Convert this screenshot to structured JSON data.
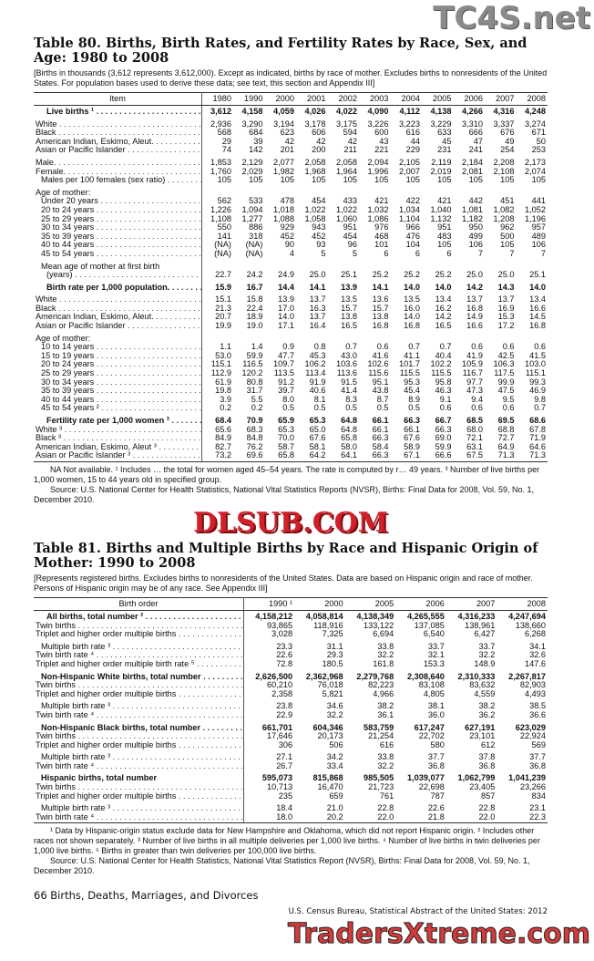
{
  "watermarks": {
    "top": "TC4S.net",
    "middle": "DLSUB.COM",
    "bottom": "TradersXtreme.com"
  },
  "table80": {
    "title": "Table 80. Births, Birth Rates, and Fertility Rates by Race, Sex, and Age: 1980 to 2008",
    "intro": "[Births in thousands (3,612 represents 3,612,000). Except as indicated, births by race of mother. Excludes births to nonresidents of the United States. For population bases used to derive these data; see text, this section and Appendix III]",
    "columns": [
      "Item",
      "1980",
      "1990",
      "2000",
      "2001",
      "2002",
      "2003",
      "2004",
      "2005",
      "2006",
      "2007",
      "2008"
    ],
    "rows": [
      {
        "label": "Live births ¹",
        "bold": true,
        "ind": 2,
        "values": [
          "3,612",
          "4,158",
          "4,059",
          "4,026",
          "4,022",
          "4,090",
          "4,112",
          "4,138",
          "4,266",
          "4,316",
          "4,248"
        ]
      },
      {
        "label": "White",
        "gap": true,
        "values": [
          "2,936",
          "3,290",
          "3,194",
          "3,178",
          "3,175",
          "3,226",
          "3,223",
          "3,229",
          "3,310",
          "3,337",
          "3,274"
        ]
      },
      {
        "label": "Black",
        "values": [
          "568",
          "684",
          "623",
          "606",
          "594",
          "600",
          "616",
          "633",
          "666",
          "676",
          "671"
        ]
      },
      {
        "label": "American Indian, Eskimo, Aleut.",
        "values": [
          "29",
          "39",
          "42",
          "42",
          "42",
          "43",
          "44",
          "45",
          "47",
          "49",
          "50"
        ]
      },
      {
        "label": "Asian or Pacific Islander",
        "values": [
          "74",
          "142",
          "201",
          "200",
          "211",
          "221",
          "229",
          "231",
          "241",
          "254",
          "253"
        ]
      },
      {
        "label": "Male.",
        "gap": true,
        "values": [
          "1,853",
          "2,129",
          "2,077",
          "2,058",
          "2,058",
          "2,094",
          "2,105",
          "2,119",
          "2,184",
          "2,208",
          "2,173"
        ]
      },
      {
        "label": "Female.",
        "values": [
          "1,760",
          "2,029",
          "1,982",
          "1,968",
          "1,964",
          "1,996",
          "2,007",
          "2,019",
          "2,081",
          "2,108",
          "2,074"
        ]
      },
      {
        "label": "Males per 100 females (sex ratio)",
        "ind": 1,
        "values": [
          "105",
          "105",
          "105",
          "105",
          "105",
          "105",
          "105",
          "105",
          "105",
          "105",
          "105"
        ]
      },
      {
        "label": "Age of mother:",
        "gap": true,
        "nodots": true,
        "values": []
      },
      {
        "label": "Under 20 years",
        "ind": 1,
        "values": [
          "562",
          "533",
          "478",
          "454",
          "433",
          "421",
          "422",
          "421",
          "442",
          "451",
          "441"
        ]
      },
      {
        "label": "20 to 24 years",
        "ind": 1,
        "values": [
          "1,226",
          "1,094",
          "1,018",
          "1,022",
          "1,022",
          "1,032",
          "1,034",
          "1,040",
          "1,081",
          "1,082",
          "1,052"
        ]
      },
      {
        "label": "25 to 29 years",
        "ind": 1,
        "values": [
          "1,108",
          "1,277",
          "1,088",
          "1,058",
          "1,060",
          "1,086",
          "1,104",
          "1,132",
          "1,182",
          "1,208",
          "1,196"
        ]
      },
      {
        "label": "30 to 34 years",
        "ind": 1,
        "values": [
          "550",
          "886",
          "929",
          "943",
          "951",
          "976",
          "966",
          "951",
          "950",
          "962",
          "957"
        ]
      },
      {
        "label": "35 to 39 years",
        "ind": 1,
        "values": [
          "141",
          "318",
          "452",
          "452",
          "454",
          "468",
          "476",
          "483",
          "499",
          "500",
          "489"
        ]
      },
      {
        "label": "40 to 44 years",
        "ind": 1,
        "values": [
          "(NA)",
          "(NA)",
          "90",
          "93",
          "96",
          "101",
          "104",
          "105",
          "106",
          "105",
          "106"
        ]
      },
      {
        "label": "45 to 54 years",
        "ind": 1,
        "values": [
          "(NA)",
          "(NA)",
          "4",
          "5",
          "5",
          "6",
          "6",
          "6",
          "7",
          "7",
          "7"
        ]
      },
      {
        "label": "Mean age of mother at first birth",
        "ind": 1,
        "gap": true,
        "nodots": true,
        "values": []
      },
      {
        "label": "(years)",
        "ind": 2,
        "values": [
          "22.7",
          "24.2",
          "24.9",
          "25.0",
          "25.1",
          "25.2",
          "25.2",
          "25.2",
          "25.0",
          "25.0",
          "25.1"
        ]
      },
      {
        "label": "Birth rate per 1,000 population.",
        "bold": true,
        "ind": 2,
        "gap": true,
        "values": [
          "15.9",
          "16.7",
          "14.4",
          "14.1",
          "13.9",
          "14.1",
          "14.0",
          "14.0",
          "14.2",
          "14.3",
          "14.0"
        ]
      },
      {
        "label": "White",
        "gap": true,
        "values": [
          "15.1",
          "15.8",
          "13.9",
          "13.7",
          "13.5",
          "13.6",
          "13.5",
          "13.4",
          "13.7",
          "13.7",
          "13.4"
        ]
      },
      {
        "label": "Black",
        "values": [
          "21.3",
          "22.4",
          "17.0",
          "16.3",
          "15.7",
          "15.7",
          "16.0",
          "16.2",
          "16.8",
          "16.9",
          "16.6"
        ]
      },
      {
        "label": "American Indian, Eskimo, Aleut.",
        "values": [
          "20.7",
          "18.9",
          "14.0",
          "13.7",
          "13.8",
          "13.8",
          "14.0",
          "14.2",
          "14.9",
          "15.3",
          "14.5"
        ]
      },
      {
        "label": "Asian or Pacific Islander",
        "values": [
          "19.9",
          "19.0",
          "17.1",
          "16.4",
          "16.5",
          "16.8",
          "16.8",
          "16.5",
          "16.6",
          "17.2",
          "16.8"
        ]
      },
      {
        "label": "Age of mother:",
        "gap": true,
        "nodots": true,
        "values": []
      },
      {
        "label": "10 to 14 years",
        "ind": 1,
        "values": [
          "1.1",
          "1.4",
          "0.9",
          "0.8",
          "0.7",
          "0.6",
          "0.7",
          "0.7",
          "0.6",
          "0.6",
          "0.6"
        ]
      },
      {
        "label": "15 to 19 years",
        "ind": 1,
        "values": [
          "53.0",
          "59.9",
          "47.7",
          "45.3",
          "43.0",
          "41.6",
          "41.1",
          "40.4",
          "41.9",
          "42.5",
          "41.5"
        ]
      },
      {
        "label": "20 to 24 years",
        "ind": 1,
        "values": [
          "115.1",
          "116.5",
          "109.7",
          "106.2",
          "103.6",
          "102.6",
          "101.7",
          "102.2",
          "105.9",
          "106.3",
          "103.0"
        ]
      },
      {
        "label": "25 to 29 years",
        "ind": 1,
        "values": [
          "112.9",
          "120.2",
          "113.5",
          "113.4",
          "113.6",
          "115.6",
          "115.5",
          "115.5",
          "116.7",
          "117.5",
          "115.1"
        ]
      },
      {
        "label": "30 to 34 years",
        "ind": 1,
        "values": [
          "61.9",
          "80.8",
          "91.2",
          "91.9",
          "91.5",
          "95.1",
          "95.3",
          "95.8",
          "97.7",
          "99.9",
          "99.3"
        ]
      },
      {
        "label": "35 to 39 years",
        "ind": 1,
        "values": [
          "19.8",
          "31.7",
          "39.7",
          "40.6",
          "41.4",
          "43.8",
          "45.4",
          "46.3",
          "47.3",
          "47.5",
          "46.9"
        ]
      },
      {
        "label": "40 to 44 years",
        "ind": 1,
        "values": [
          "3.9",
          "5.5",
          "8.0",
          "8.1",
          "8.3",
          "8.7",
          "8.9",
          "9.1",
          "9.4",
          "9.5",
          "9.8"
        ]
      },
      {
        "label": "45 to 54 years ²",
        "ind": 1,
        "values": [
          "0.2",
          "0.2",
          "0.5",
          "0.5",
          "0.5",
          "0.5",
          "0.5",
          "0.6",
          "0.6",
          "0.6",
          "0.7"
        ]
      },
      {
        "label": "Fertility rate per 1,000 women ³",
        "bold": true,
        "ind": 2,
        "gap": true,
        "values": [
          "68.4",
          "70.9",
          "65.9",
          "65.3",
          "64.8",
          "66.1",
          "66.3",
          "66.7",
          "68.5",
          "69.5",
          "68.6"
        ]
      },
      {
        "label": "White ³",
        "values": [
          "65.6",
          "68.3",
          "65.3",
          "65.0",
          "64.8",
          "66.1",
          "66.1",
          "66.3",
          "68.0",
          "68.8",
          "67.8"
        ]
      },
      {
        "label": "Black ³",
        "values": [
          "84.9",
          "84.8",
          "70.0",
          "67.6",
          "65.8",
          "66.3",
          "67.6",
          "69.0",
          "72.1",
          "72.7",
          "71.9"
        ]
      },
      {
        "label": "American Indian, Eskimo, Aleut ³",
        "values": [
          "82.7",
          "76.2",
          "58.7",
          "58.1",
          "58.0",
          "58.4",
          "58.9",
          "59.9",
          "63.1",
          "64.9",
          "64.6"
        ]
      },
      {
        "label": "Asian or Pacific Islander ³",
        "values": [
          "73.2",
          "69.6",
          "65.8",
          "64.2",
          "64.1",
          "66.3",
          "67.1",
          "66.6",
          "67.5",
          "71.3",
          "71.3"
        ]
      }
    ],
    "footnote": "NA Not available. ¹ Includes … the total for women aged 45–54 years. The rate is computed by r… 49 years. ³ Number of live births per 1,000 women, 15 to 44 years old in specified group.",
    "source": "Source: U.S. National Center for Health Statistics, National Vital Statistics Reports (NVSR), Births: Final Data for 2008, Vol. 59, No. 1, December 2010."
  },
  "table81": {
    "title": "Table 81. Births and Multiple Births by Race and Hispanic Origin of Mother: 1990 to 2008",
    "intro": "[Represents registered births. Excludes births to nonresidents of the United States. Data are based on Hispanic origin and race of mother. Persons of Hispanic origin may be of any race. See Appendix III]",
    "columns": [
      "Birth order",
      "1990 ¹",
      "2000",
      "2005",
      "2006",
      "2007",
      "2008"
    ],
    "rows": [
      {
        "label": "All births, total number ²",
        "bold": true,
        "ind": 2,
        "values": [
          "4,158,212",
          "4,058,814",
          "4,138,349",
          "4,265,555",
          "4,316,233",
          "4,247,694"
        ]
      },
      {
        "label": "Twin births",
        "values": [
          "93,865",
          "118,916",
          "133,122",
          "137,085",
          "138,961",
          "138,660"
        ]
      },
      {
        "label": "Triplet and higher order multiple births",
        "values": [
          "3,028",
          "7,325",
          "6,694",
          "6,540",
          "6,427",
          "6,268"
        ]
      },
      {
        "label": "Multiple birth rate ³",
        "ind": 1,
        "gap": true,
        "values": [
          "23.3",
          "31.1",
          "33.8",
          "33.7",
          "33.7",
          "34.1"
        ]
      },
      {
        "label": "Twin birth rate ⁴",
        "values": [
          "22.6",
          "29.3",
          "32.2",
          "32.1",
          "32.2",
          "32.6"
        ]
      },
      {
        "label": "Triplet and higher order multiple birth rate ⁵",
        "values": [
          "72.8",
          "180.5",
          "161.8",
          "153.3",
          "148.9",
          "147.6"
        ]
      },
      {
        "label": "Non-Hispanic White births, total number",
        "bold": true,
        "ind": 1,
        "gap": true,
        "values": [
          "2,626,500",
          "2,362,968",
          "2,279,768",
          "2,308,640",
          "2,310,333",
          "2,267,817"
        ]
      },
      {
        "label": "Twin births",
        "values": [
          "60,210",
          "76,018",
          "82,223",
          "83,108",
          "83,632",
          "82,903"
        ]
      },
      {
        "label": "Triplet and higher order multiple births",
        "values": [
          "2,358",
          "5,821",
          "4,966",
          "4,805",
          "4,559",
          "4,493"
        ]
      },
      {
        "label": "Multiple birth rate ³",
        "ind": 1,
        "gap": true,
        "values": [
          "23.8",
          "34.6",
          "38.2",
          "38.1",
          "38.2",
          "38.5"
        ]
      },
      {
        "label": "Twin birth rate ⁴",
        "values": [
          "22.9",
          "32.2",
          "36.1",
          "36.0",
          "36.2",
          "36.6"
        ]
      },
      {
        "label": "Non-Hispanic Black births, total number",
        "bold": true,
        "ind": 1,
        "gap": true,
        "values": [
          "661,701",
          "604,346",
          "583,759",
          "617,247",
          "627,191",
          "623,029"
        ]
      },
      {
        "label": "Twin births",
        "values": [
          "17,646",
          "20,173",
          "21,254",
          "22,702",
          "23,101",
          "22,924"
        ]
      },
      {
        "label": "Triplet and higher order multiple births",
        "values": [
          "306",
          "506",
          "616",
          "580",
          "612",
          "569"
        ]
      },
      {
        "label": "Multiple birth rate ³",
        "ind": 1,
        "gap": true,
        "values": [
          "27.1",
          "34.2",
          "33.8",
          "37.7",
          "37.8",
          "37.7"
        ]
      },
      {
        "label": "Twin birth rate ⁴",
        "values": [
          "26.7",
          "33.4",
          "32.2",
          "36.8",
          "36.8",
          "36.8"
        ]
      },
      {
        "label": "Hispanic births, total number",
        "bold": true,
        "ind": 1,
        "gap": true,
        "nodots": true,
        "values": [
          "595,073",
          "815,868",
          "985,505",
          "1,039,077",
          "1,062,799",
          "1,041,239"
        ]
      },
      {
        "label": "Twin births",
        "values": [
          "10,713",
          "16,470",
          "21,723",
          "22,698",
          "23,405",
          "23,266"
        ]
      },
      {
        "label": "Triplet and higher order multiple births",
        "values": [
          "235",
          "659",
          "761",
          "787",
          "857",
          "834"
        ]
      },
      {
        "label": "Multiple birth rate ³",
        "ind": 1,
        "gap": true,
        "values": [
          "18.4",
          "21.0",
          "22.8",
          "22.6",
          "22.8",
          "23.1"
        ]
      },
      {
        "label": "Twin birth rate ⁴",
        "values": [
          "18.0",
          "20.2",
          "22.0",
          "21.8",
          "22.0",
          "22.3"
        ]
      }
    ],
    "footnote": "¹ Data by Hispanic-origin status exclude data for New Hampshire and Oklahoma, which did not report Hispanic origin. ² Includes other races not shown separately. ³ Number of live births in all multiple deliveries per 1,000 live births. ⁴ Number of live births in twin deliveries per 1,000 live births. ⁵ Births in greater than twin deliveries per 100,000 live births.",
    "source": "Source: U.S. National Center for Health Statistics, National Vital Statistics Report (NVSR), Births: Final Data for 2008, Vol. 59, No. 1, December 2010."
  },
  "footer": {
    "page": "66  Births, Deaths, Marriages, and Divorces",
    "publication": "U.S. Census Bureau, Statistical Abstract of the United States: 2012"
  }
}
